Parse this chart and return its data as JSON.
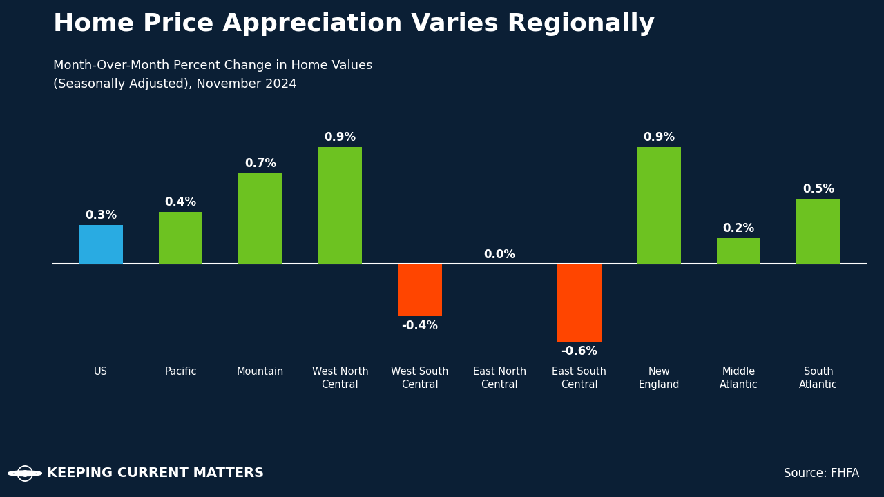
{
  "title": "Home Price Appreciation Varies Regionally",
  "subtitle": "Month-Over-Month Percent Change in Home Values\n(Seasonally Adjusted), November 2024",
  "categories": [
    "US",
    "Pacific",
    "Mountain",
    "West North\nCentral",
    "West South\nCentral",
    "East North\nCentral",
    "East South\nCentral",
    "New\nEngland",
    "Middle\nAtlantic",
    "South\nAtlantic"
  ],
  "values": [
    0.3,
    0.4,
    0.7,
    0.9,
    -0.4,
    0.0,
    -0.6,
    0.9,
    0.2,
    0.5
  ],
  "colors": [
    "#29ABE2",
    "#6DC221",
    "#6DC221",
    "#6DC221",
    "#FF4500",
    "#6DC221",
    "#FF4500",
    "#6DC221",
    "#6DC221",
    "#6DC221"
  ],
  "background_color": "#0B1F35",
  "bar_label_color": "#FFFFFF",
  "axis_line_color": "#FFFFFF",
  "footer_bg_color_left": "#6B9A1A",
  "footer_bg_color_right": "#8DC21F",
  "footer_text": "Keeping Current Matters",
  "footer_source": "Source: FHFA",
  "title_color": "#FFFFFF",
  "subtitle_color": "#FFFFFF",
  "ylim": [
    -0.95,
    1.15
  ],
  "bar_width": 0.55
}
